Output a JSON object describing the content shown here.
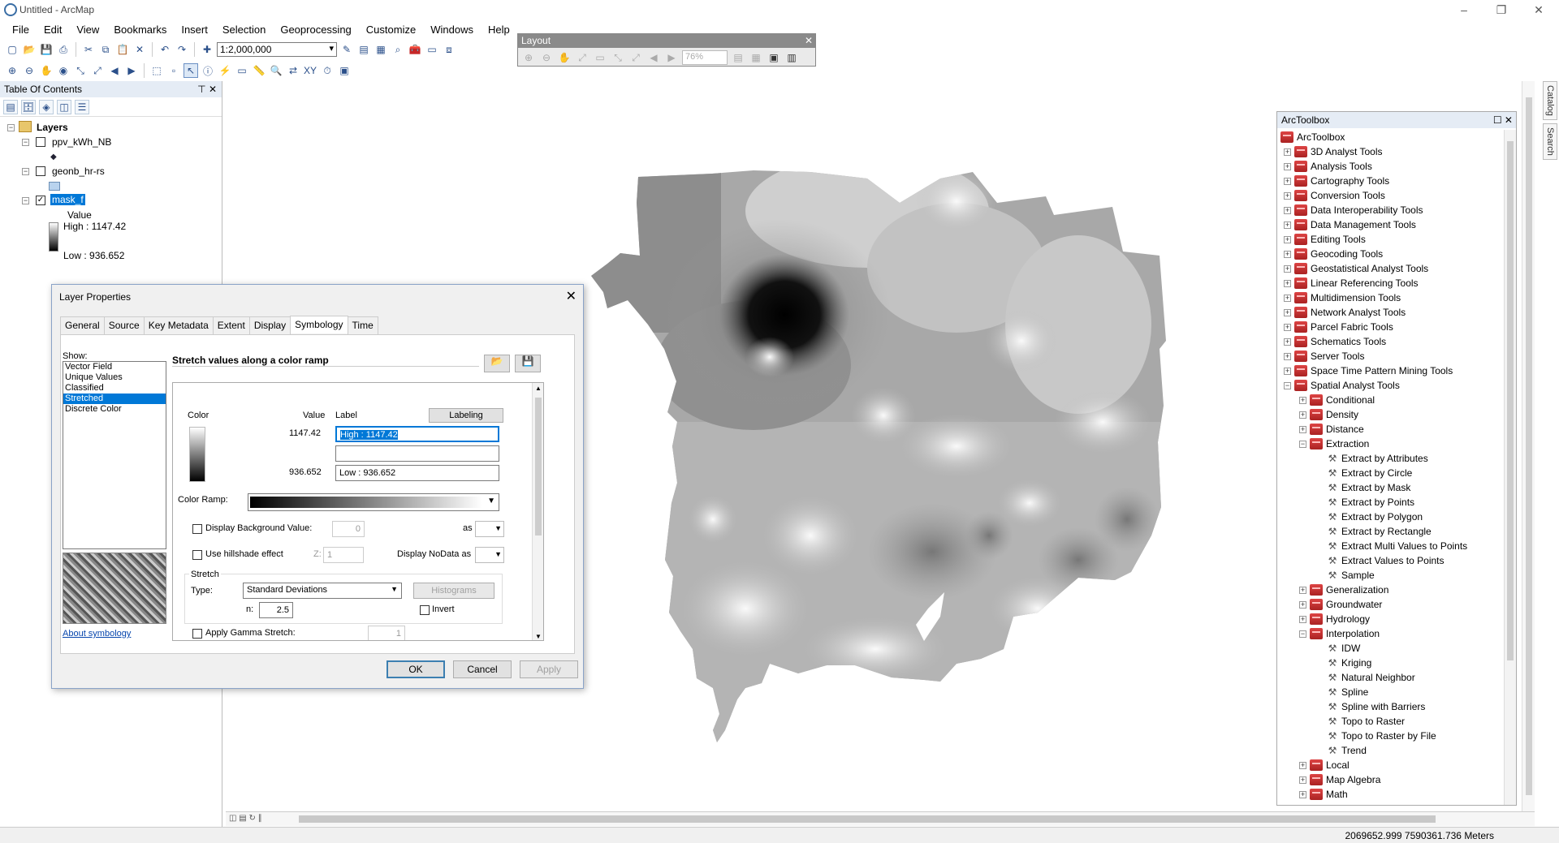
{
  "window": {
    "title": "Untitled - ArcMap",
    "controls": [
      "–",
      "❐",
      "✕"
    ]
  },
  "menu": [
    "File",
    "Edit",
    "View",
    "Bookmarks",
    "Insert",
    "Selection",
    "Geoprocessing",
    "Customize",
    "Windows",
    "Help"
  ],
  "toolbar": {
    "scale_value": "1:2,000,000"
  },
  "layout_toolbar": {
    "title": "Layout",
    "zoom_value": "76%"
  },
  "toc": {
    "title": "Table Of Contents",
    "root": "Layers",
    "layers": [
      {
        "name": "ppv_kWh_NB",
        "checked": false
      },
      {
        "name": "geonb_hr-rs",
        "checked": false
      },
      {
        "name": "mask_f",
        "checked": true
      }
    ],
    "legend": {
      "field": "Value",
      "high": "High : 1147.42",
      "low": "Low : 936.652"
    }
  },
  "dialog": {
    "title": "Layer Properties",
    "tabs": [
      "General",
      "Source",
      "Key Metadata",
      "Extent",
      "Display",
      "Symbology",
      "Time"
    ],
    "active_tab": "Symbology",
    "show_label": "Show:",
    "show_items": [
      "Vector Field",
      "Unique Values",
      "Classified",
      "Stretched",
      "Discrete Color"
    ],
    "selected_show": "Stretched",
    "heading": "Stretch values along a color ramp",
    "about_link": "About symbology",
    "col_color": "Color",
    "col_value": "Value",
    "col_label": "Label",
    "labeling_button": "Labeling",
    "high_value": "1147.42",
    "low_value": "936.652",
    "high_label": "High : 1147.42",
    "mid_label": "",
    "low_label": "Low : 936.652",
    "color_ramp_label": "Color Ramp:",
    "display_bg_label": "Display Background Value:",
    "display_bg_value": "0",
    "as_label": "as",
    "hillshade_label": "Use hillshade effect",
    "z_label": "Z:",
    "z_value": "1",
    "nodata_label": "Display NoData as",
    "stretch_group": "Stretch",
    "type_label": "Type:",
    "type_value": "Standard Deviations",
    "histograms_button": "Histograms",
    "n_label": "n:",
    "n_value": "2.5",
    "invert_label": "Invert",
    "gamma_label": "Apply Gamma Stretch:",
    "gamma_value": "1",
    "ok": "OK",
    "cancel": "Cancel",
    "apply": "Apply"
  },
  "arctoolbox": {
    "title": "ArcToolbox",
    "root": "ArcToolbox",
    "toolboxes": [
      "3D Analyst Tools",
      "Analysis Tools",
      "Cartography Tools",
      "Conversion Tools",
      "Data Interoperability Tools",
      "Data Management Tools",
      "Editing Tools",
      "Geocoding Tools",
      "Geostatistical Analyst Tools",
      "Linear Referencing Tools",
      "Multidimension Tools",
      "Network Analyst Tools",
      "Parcel Fabric Tools",
      "Schematics Tools",
      "Server Tools",
      "Space Time Pattern Mining Tools",
      "Spatial Analyst Tools"
    ],
    "spatial_children_a": [
      "Conditional",
      "Density",
      "Distance"
    ],
    "extraction": "Extraction",
    "extraction_tools": [
      "Extract by Attributes",
      "Extract by Circle",
      "Extract by Mask",
      "Extract by Points",
      "Extract by Polygon",
      "Extract by Rectangle",
      "Extract Multi Values to Points",
      "Extract Values to Points",
      "Sample"
    ],
    "spatial_children_b": [
      "Generalization",
      "Groundwater",
      "Hydrology"
    ],
    "interpolation": "Interpolation",
    "interpolation_tools": [
      "IDW",
      "Kriging",
      "Natural Neighbor",
      "Spline",
      "Spline with Barriers",
      "Topo to Raster",
      "Topo to Raster by File",
      "Trend"
    ],
    "spatial_children_c": [
      "Local",
      "Map Algebra",
      "Math"
    ]
  },
  "side_tabs": [
    "Catalog",
    "Search"
  ],
  "status": {
    "coords": "2069652.999  7590361.736 Meters"
  }
}
